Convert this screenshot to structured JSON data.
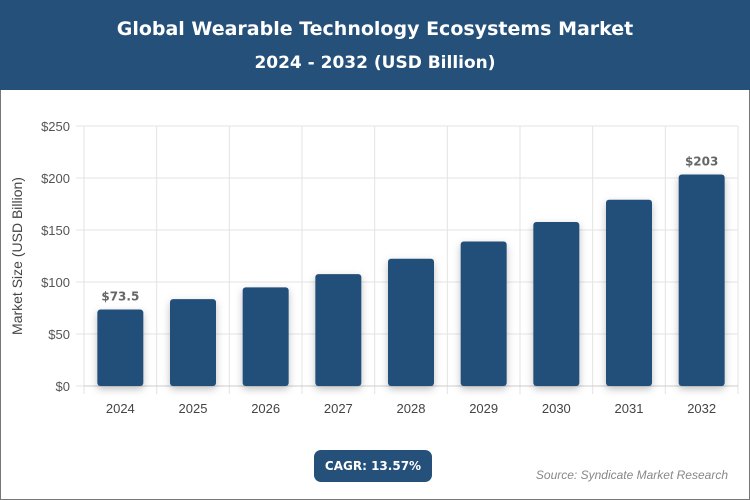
{
  "header": {
    "title": "Global Wearable Technology Ecosystems Market",
    "subtitle": "2024 - 2032 (USD Billion)"
  },
  "chart_data": {
    "type": "bar",
    "categories": [
      "2024",
      "2025",
      "2026",
      "2027",
      "2028",
      "2029",
      "2030",
      "2031",
      "2032"
    ],
    "values": [
      73.5,
      83.5,
      94.8,
      107.6,
      122.3,
      138.9,
      157.7,
      179.1,
      203.4
    ],
    "data_labels": {
      "0": "$73.5",
      "8": "$203"
    },
    "ylabel": "Market Size (USD Billion)",
    "xlabel": "",
    "ylim": [
      0,
      250
    ],
    "yticks": [
      0,
      50,
      100,
      150,
      200,
      250
    ],
    "ytick_labels": [
      "$0",
      "$50",
      "$100",
      "$150",
      "$200",
      "$250"
    ],
    "grid": true,
    "bar_color": "#24507a"
  },
  "footer": {
    "cagr": "CAGR: 13.57%",
    "source": "Source: Syndicate Market Research"
  }
}
